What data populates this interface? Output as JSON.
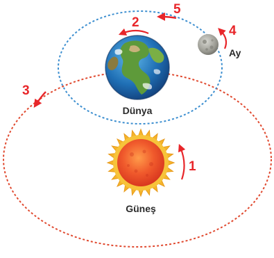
{
  "labels": {
    "earth": "Dünya",
    "moon": "Ay",
    "sun": "Güneş"
  },
  "markers": {
    "m1": "1",
    "m2": "2",
    "m3": "3",
    "m4": "4",
    "m5": "5"
  },
  "colors": {
    "moon_orbit": "#3d8fd0",
    "earth_orbit": "#e0492f",
    "arrow": "#e8262a",
    "label_text": "#2b2b2b",
    "sun_core": "#f0562a",
    "sun_rays": "#f5b52b"
  },
  "icons": {
    "sun": "sun-icon",
    "earth": "earth-globe-icon",
    "moon": "moon-icon"
  }
}
